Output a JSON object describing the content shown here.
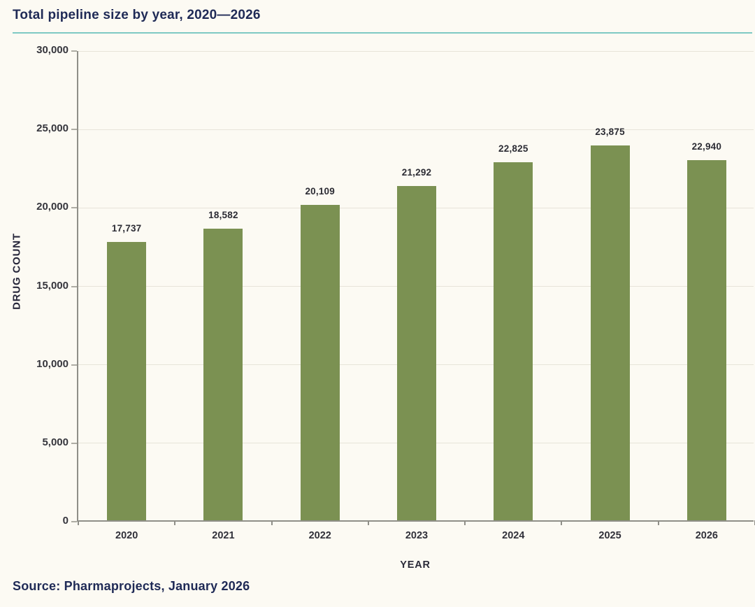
{
  "title": "Total pipeline size by year, 2020—2026",
  "source": "Source: Pharmaprojects, January 2026",
  "colors": {
    "background": "#fcfaf3",
    "bar": "#7b9152",
    "title_text": "#1f2a56",
    "accent_rule": "#7ec9c3",
    "axis_line": "#8f8f88",
    "gridline": "#e7e4d9",
    "label_text": "#2c2c34"
  },
  "chart_data": {
    "type": "bar",
    "categories": [
      "2020",
      "2021",
      "2022",
      "2023",
      "2024",
      "2025",
      "2026"
    ],
    "values": [
      17737,
      18582,
      20109,
      21292,
      22825,
      23875,
      22940
    ],
    "value_labels": [
      "17,737",
      "18,582",
      "20,109",
      "21,292",
      "22,825",
      "23,875",
      "22,940"
    ],
    "title": "Total pipeline size by year, 2020—2026",
    "xlabel": "YEAR",
    "ylabel": "DRUG COUNT",
    "ylim": [
      0,
      30000
    ],
    "ytick_interval": 5000,
    "ytick_labels": [
      "0",
      "5,000",
      "10,000",
      "15,000",
      "20,000",
      "25,000",
      "30,000"
    ],
    "grid": true,
    "legend": false,
    "bar_color": "#7b9152"
  }
}
